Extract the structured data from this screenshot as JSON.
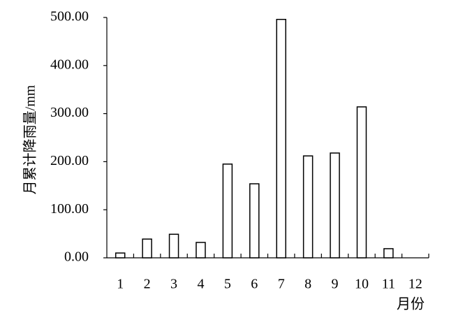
{
  "chart_data": {
    "type": "bar",
    "y_label": "月累计降雨量/mm",
    "x_label": "月份",
    "categories": [
      "1",
      "2",
      "3",
      "4",
      "5",
      "6",
      "7",
      "8",
      "9",
      "10",
      "11",
      "12"
    ],
    "values": [
      10,
      39,
      49,
      32,
      195,
      154,
      496,
      212,
      218,
      314,
      19,
      0
    ],
    "color": "#ffffff",
    "ylim": [
      0,
      500
    ],
    "yticks": [
      {
        "value": 0,
        "label": "0.00"
      },
      {
        "value": 100,
        "label": "100.00"
      },
      {
        "value": 200,
        "label": "200.00"
      },
      {
        "value": 300,
        "label": "300.00"
      },
      {
        "value": 400,
        "label": "400.00"
      },
      {
        "value": 500,
        "label": "500.00"
      }
    ],
    "grid": false
  }
}
